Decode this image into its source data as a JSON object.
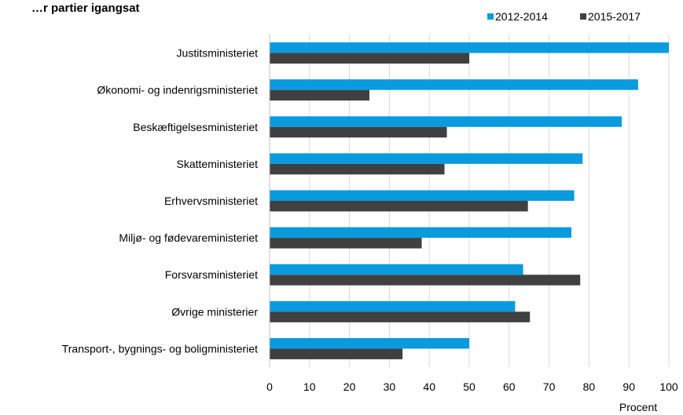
{
  "title": "…r partier igangsat",
  "chart_data": {
    "type": "bar",
    "orientation": "horizontal",
    "categories": [
      "Justitsministeriet",
      "Økonomi- og indenrigsministeriet",
      "Beskæftigelsesministeriet",
      "Skatteministeriet",
      "Erhvervsministeriet",
      "Miljø- og fødevareministeriet",
      "Forsvarsministeriet",
      "Øvrige ministerier",
      "Transport-, bygnings- og boligministeriet"
    ],
    "series": [
      {
        "name": "2012-2014",
        "color": "#0a9ade",
        "values": [
          100,
          92.3,
          88.2,
          78.4,
          76.3,
          75.6,
          63.5,
          61.5,
          50
        ]
      },
      {
        "name": "2015-2017",
        "color": "#404040",
        "values": [
          50,
          25,
          44.4,
          43.8,
          64.7,
          38.1,
          77.8,
          65.2,
          33.3
        ]
      }
    ],
    "xlabel": "Procent",
    "xlim": [
      0,
      100
    ],
    "xticks": [
      "0",
      "10",
      "20",
      "30",
      "40",
      "50",
      "60",
      "70",
      "80",
      "90",
      "100"
    ],
    "grid": "vertical",
    "legend_position": "top-right"
  }
}
